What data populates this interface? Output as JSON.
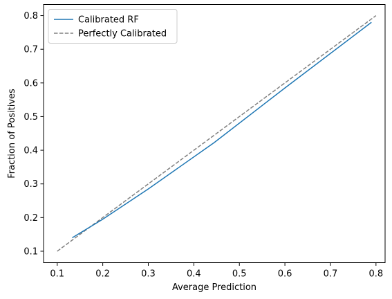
{
  "chart_data": {
    "type": "line",
    "title": "",
    "xlabel": "Average Prediction",
    "ylabel": "Fraction of Positives",
    "xlim": [
      0.07,
      0.82
    ],
    "ylim": [
      0.066,
      0.833
    ],
    "xticks": [
      0.1,
      0.2,
      0.3,
      0.4,
      0.5,
      0.6,
      0.7,
      0.8
    ],
    "yticks": [
      0.1,
      0.2,
      0.3,
      0.4,
      0.5,
      0.6,
      0.7,
      0.8
    ],
    "xtick_labels": [
      "0.1",
      "0.2",
      "0.3",
      "0.4",
      "0.5",
      "0.6",
      "0.7",
      "0.8"
    ],
    "ytick_labels": [
      "0.1",
      "0.2",
      "0.3",
      "0.4",
      "0.5",
      "0.6",
      "0.7",
      "0.8"
    ],
    "grid": false,
    "legend_position": "upper-left",
    "series": [
      {
        "name": "Calibrated RF",
        "color": "#1f77b4",
        "line_style": "solid",
        "x": [
          0.133,
          0.2,
          0.3,
          0.445,
          0.6,
          0.79
        ],
        "y": [
          0.14,
          0.195,
          0.285,
          0.423,
          0.585,
          0.78
        ]
      },
      {
        "name": "Perfectly Calibrated",
        "color": "#808080",
        "line_style": "dashed",
        "x": [
          0.1,
          0.8
        ],
        "y": [
          0.1,
          0.8
        ]
      }
    ]
  }
}
